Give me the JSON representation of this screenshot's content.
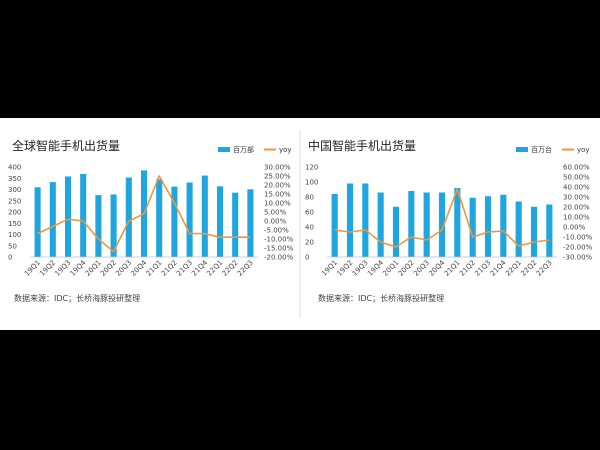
{
  "chart_data": [
    {
      "type": "bar",
      "title": "全球智能手机出货量",
      "source": "数据来源：IDC；长桥海豚投研整理",
      "categories": [
        "19Q1",
        "19Q2",
        "19Q3",
        "19Q4",
        "20Q1",
        "20Q2",
        "20Q3",
        "20Q4",
        "21Q1",
        "21Q2",
        "21Q3",
        "21Q4",
        "22Q1",
        "22Q2",
        "22Q3"
      ],
      "ylim": [
        0,
        400
      ],
      "yticks": [
        "0",
        "50",
        "100",
        "150",
        "200",
        "250",
        "300",
        "350",
        "400"
      ],
      "y2lim": [
        -0.2,
        0.3
      ],
      "y2ticks": [
        "-20.00%",
        "-15.00%",
        "-10.00%",
        "-5.00%",
        "0.00%",
        "5.00%",
        "10.00%",
        "15.00%",
        "20.00%",
        "25.00%",
        "30.00%"
      ],
      "legend": "top-right",
      "series": [
        {
          "name": "百万部",
          "kind": "bar",
          "color": "#1fa5e0",
          "values": [
            310,
            333,
            358,
            369,
            275,
            278,
            353,
            385,
            345,
            313,
            331,
            362,
            314,
            286,
            301
          ]
        },
        {
          "name": "yoy",
          "kind": "line",
          "color": "#f0963c",
          "axis": "right",
          "values": [
            -0.07,
            -0.03,
            0.01,
            0.0,
            -0.1,
            -0.17,
            0.0,
            0.04,
            0.25,
            0.1,
            -0.07,
            -0.07,
            -0.09,
            -0.09,
            -0.09
          ]
        }
      ]
    },
    {
      "type": "bar",
      "title": "中国智能手机出货量",
      "source": "数据来源：IDC；长桥海豚投研整理",
      "categories": [
        "19Q1",
        "19Q2",
        "19Q3",
        "19Q4",
        "20Q1",
        "20Q2",
        "20Q3",
        "20Q4",
        "21Q1",
        "21Q2",
        "21Q3",
        "21Q4",
        "22Q1",
        "22Q2",
        "22Q3"
      ],
      "ylim": [
        0,
        120
      ],
      "yticks": [
        "0",
        "20",
        "40",
        "60",
        "80",
        "100",
        "120"
      ],
      "y2lim": [
        -0.3,
        0.6
      ],
      "y2ticks": [
        "-30.00%",
        "-20.00%",
        "-10.00%",
        "0.00%",
        "10.00%",
        "20.00%",
        "30.00%",
        "40.00%",
        "50.00%",
        "60.00%"
      ],
      "legend": "top-right",
      "series": [
        {
          "name": "百万台",
          "kind": "bar",
          "color": "#1fa5e0",
          "values": [
            84,
            98,
            98,
            86,
            67,
            88,
            86,
            86,
            92,
            79,
            81,
            83,
            74,
            67,
            70
          ]
        },
        {
          "name": "yoy",
          "kind": "line",
          "color": "#f0963c",
          "axis": "right",
          "values": [
            -0.03,
            -0.05,
            -0.03,
            -0.15,
            -0.2,
            -0.1,
            -0.13,
            -0.03,
            0.38,
            -0.1,
            -0.05,
            -0.04,
            -0.19,
            -0.15,
            -0.13
          ]
        }
      ]
    }
  ]
}
